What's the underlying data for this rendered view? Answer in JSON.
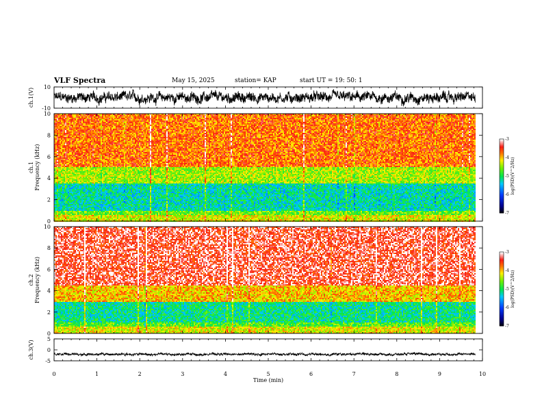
{
  "header": {
    "title": "VLF Spectra",
    "date": "May 15, 2025",
    "station": "station= KAP",
    "start": "start  UT =   19: 50: 1"
  },
  "chart_data": [
    {
      "type": "line",
      "panel": "ch1-waveform",
      "ylabel": "ch.1(V)",
      "ylim": [
        -10,
        10
      ],
      "yticks": [
        "10",
        "-10"
      ],
      "xlim": [
        0,
        10
      ],
      "x_end": 9.83,
      "mean": 0,
      "amplitude_range": [
        -7,
        7
      ]
    },
    {
      "type": "heatmap",
      "panel": "ch1-spectrogram",
      "ylabel_top": "ch.1",
      "ylabel": "Frequency (kHz)",
      "ylim": [
        0,
        10
      ],
      "yticks": [
        "0",
        "2",
        "4",
        "6",
        "8",
        "10"
      ],
      "xlim": [
        0,
        10
      ],
      "x_end": 9.83,
      "bands": [
        {
          "f": [
            0,
            0.6
          ],
          "logpsd": -4.2
        },
        {
          "f": [
            0.6,
            1.0
          ],
          "logpsd": -4.6
        },
        {
          "f": [
            1.0,
            3.5
          ],
          "logpsd": -5.2
        },
        {
          "f": [
            3.5,
            5.0
          ],
          "logpsd": -4.4
        },
        {
          "f": [
            5.0,
            10.0
          ],
          "logpsd": -3.7
        }
      ],
      "colorbar": {
        "label": "log(PSD)(V^2/Hz)",
        "range": [
          -7,
          -3
        ],
        "ticks": [
          "-3",
          "-4",
          "-5",
          "-6",
          "-7"
        ]
      }
    },
    {
      "type": "heatmap",
      "panel": "ch2-spectrogram",
      "ylabel_top": "ch.2",
      "ylabel": "Frequency (kHz)",
      "ylim": [
        0,
        10
      ],
      "yticks": [
        "0",
        "2",
        "4",
        "6",
        "8",
        "10"
      ],
      "xlim": [
        0,
        10
      ],
      "x_end": 9.83,
      "bands": [
        {
          "f": [
            0,
            0.6
          ],
          "logpsd": -4.2
        },
        {
          "f": [
            0.6,
            1.0
          ],
          "logpsd": -4.7
        },
        {
          "f": [
            1.0,
            3.0
          ],
          "logpsd": -5.1
        },
        {
          "f": [
            3.0,
            4.5
          ],
          "logpsd": -4.0
        },
        {
          "f": [
            4.5,
            10.0
          ],
          "logpsd": -3.3
        }
      ],
      "colorbar": {
        "label": "log(PSD)(V^2/Hz)",
        "range": [
          -7,
          -3
        ],
        "ticks": [
          "-3",
          "-4",
          "-5",
          "-6",
          "-7"
        ]
      }
    },
    {
      "type": "line",
      "panel": "ch3-waveform",
      "ylabel": "ch.3(V)",
      "ylim": [
        -5,
        5
      ],
      "yticks": [
        "5",
        "0",
        "-5"
      ],
      "xlim": [
        0,
        10
      ],
      "x_end": 9.83,
      "mean": -2.0,
      "amplitude_range": [
        -0.8,
        0.8
      ]
    }
  ],
  "xaxis": {
    "label": "Time (min)",
    "ticks": [
      "0",
      "1",
      "2",
      "3",
      "4",
      "5",
      "6",
      "7",
      "8",
      "9",
      "10"
    ]
  }
}
